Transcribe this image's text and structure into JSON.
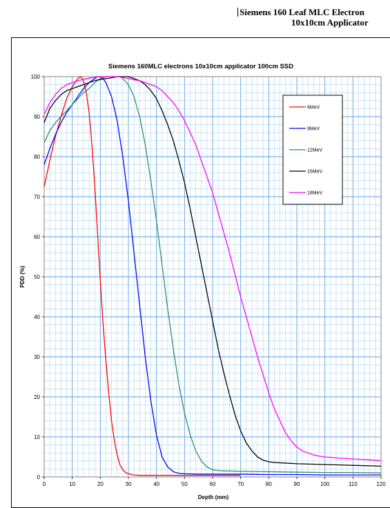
{
  "header": {
    "line1": "Siemens 160 Leaf MLC Electron",
    "line2": "10x10cm Applicator"
  },
  "chart_data": {
    "type": "line",
    "title": "Siemens 160MLC electrons 10x10cm applicator 100cm SSD",
    "xlabel": "Depth (mm)",
    "ylabel": "PDD (%)",
    "xlim": [
      0,
      120
    ],
    "ylim": [
      0,
      100
    ],
    "xticks": [
      0,
      10,
      20,
      30,
      40,
      50,
      60,
      70,
      80,
      90,
      100,
      110,
      120
    ],
    "yticks": [
      0,
      10,
      20,
      30,
      40,
      50,
      60,
      70,
      80,
      90,
      100
    ],
    "grid": true,
    "legend_position": "top-right",
    "series": [
      {
        "name": "6MeV",
        "color": "#ff0000",
        "x": [
          0,
          2,
          4,
          6,
          8,
          10,
          12,
          13,
          14,
          15,
          16,
          17,
          18,
          19,
          20,
          21,
          22,
          23,
          24,
          25,
          26,
          27,
          28,
          29,
          30,
          32,
          34,
          36,
          40,
          50,
          60,
          70
        ],
        "y": [
          72.5,
          79,
          85,
          90,
          94.5,
          97.5,
          99.5,
          100,
          99,
          96,
          91,
          83,
          73,
          61,
          49,
          38,
          29,
          21,
          14,
          9,
          5.5,
          3,
          1.8,
          1.1,
          0.8,
          0.5,
          0.4,
          0.4,
          0.4,
          0.4,
          0.4,
          0.4
        ]
      },
      {
        "name": "9MeV",
        "color": "#0000ff",
        "x": [
          0,
          2,
          4,
          6,
          8,
          10,
          12,
          14,
          16,
          18,
          19,
          20,
          21,
          22,
          24,
          26,
          28,
          30,
          32,
          34,
          36,
          38,
          40,
          42,
          44,
          46,
          48,
          50,
          55,
          60,
          70,
          80,
          90,
          100,
          110,
          120
        ],
        "y": [
          78,
          82,
          85.5,
          88.5,
          91,
          93,
          95,
          97,
          98.5,
          99.5,
          100,
          100,
          99.5,
          98.5,
          95,
          89,
          80,
          69,
          56,
          43,
          30,
          19,
          10.5,
          5,
          2.5,
          1.3,
          0.9,
          0.8,
          0.7,
          0.7,
          0.7,
          0.6,
          0.6,
          0.5,
          0.5,
          0.5
        ]
      },
      {
        "name": "12MeV",
        "color": "#2e8b6e",
        "x": [
          0,
          2,
          4,
          6,
          8,
          10,
          12,
          14,
          16,
          18,
          20,
          22,
          24,
          26,
          27,
          28,
          30,
          32,
          34,
          36,
          38,
          40,
          42,
          44,
          46,
          48,
          50,
          52,
          54,
          56,
          58,
          60,
          62,
          64,
          66,
          70,
          80,
          90,
          100,
          110,
          120
        ],
        "y": [
          83.5,
          86.5,
          88.5,
          90,
          91.5,
          93,
          94.5,
          96,
          97,
          98.5,
          99.5,
          100,
          100,
          100,
          100,
          99.5,
          98,
          95,
          90,
          83,
          74,
          64,
          53,
          42,
          32,
          23,
          16,
          10.5,
          6.5,
          4,
          2.5,
          1.8,
          1.6,
          1.5,
          1.5,
          1.4,
          1.3,
          1.2,
          1.1,
          1.1,
          1.0
        ]
      },
      {
        "name": "15MeV",
        "color": "#000000",
        "x": [
          0,
          2,
          4,
          6,
          8,
          10,
          12,
          14,
          16,
          18,
          20,
          22,
          24,
          26,
          28,
          30,
          32,
          34,
          36,
          38,
          40,
          42,
          44,
          46,
          48,
          50,
          52,
          54,
          56,
          58,
          60,
          62,
          64,
          66,
          68,
          70,
          72,
          74,
          76,
          78,
          80,
          82,
          85,
          90,
          100,
          110,
          120
        ],
        "y": [
          88.5,
          92,
          94,
          95.5,
          96.5,
          97,
          97.5,
          98,
          98.5,
          99,
          99.3,
          99.5,
          99.7,
          100,
          100,
          100,
          99.5,
          99,
          98,
          96.5,
          94.5,
          91.5,
          88,
          84,
          79,
          73.5,
          67,
          60,
          53,
          46,
          39,
          32,
          26,
          20.5,
          15.5,
          11.5,
          8.5,
          6.5,
          5,
          4.2,
          3.8,
          3.6,
          3.5,
          3.3,
          3.1,
          2.9,
          2.7
        ]
      },
      {
        "name": "18MeV",
        "color": "#ff00ff",
        "x": [
          0,
          2,
          4,
          6,
          8,
          10,
          12,
          14,
          16,
          18,
          20,
          22,
          24,
          26,
          28,
          30,
          32,
          34,
          36,
          38,
          40,
          42,
          44,
          46,
          48,
          50,
          52,
          54,
          56,
          58,
          60,
          62,
          64,
          66,
          68,
          70,
          72,
          74,
          76,
          78,
          80,
          82,
          84,
          86,
          88,
          90,
          92,
          94,
          96,
          98,
          100,
          105,
          110,
          115,
          120
        ],
        "y": [
          90.5,
          93.5,
          95.5,
          97,
          98,
          98.5,
          99,
          99.3,
          99.6,
          99.8,
          100,
          100,
          100,
          100,
          99.8,
          99.5,
          99.2,
          99,
          98.5,
          98,
          97.5,
          96.5,
          95,
          93.5,
          91.5,
          89,
          86,
          83,
          79,
          75,
          71,
          66,
          61,
          56,
          50.5,
          45,
          40,
          35,
          30,
          25.5,
          21,
          17,
          14,
          11,
          9,
          7.5,
          6.5,
          6,
          5.5,
          5.2,
          5,
          4.7,
          4.5,
          4.3,
          4.1
        ]
      }
    ]
  }
}
